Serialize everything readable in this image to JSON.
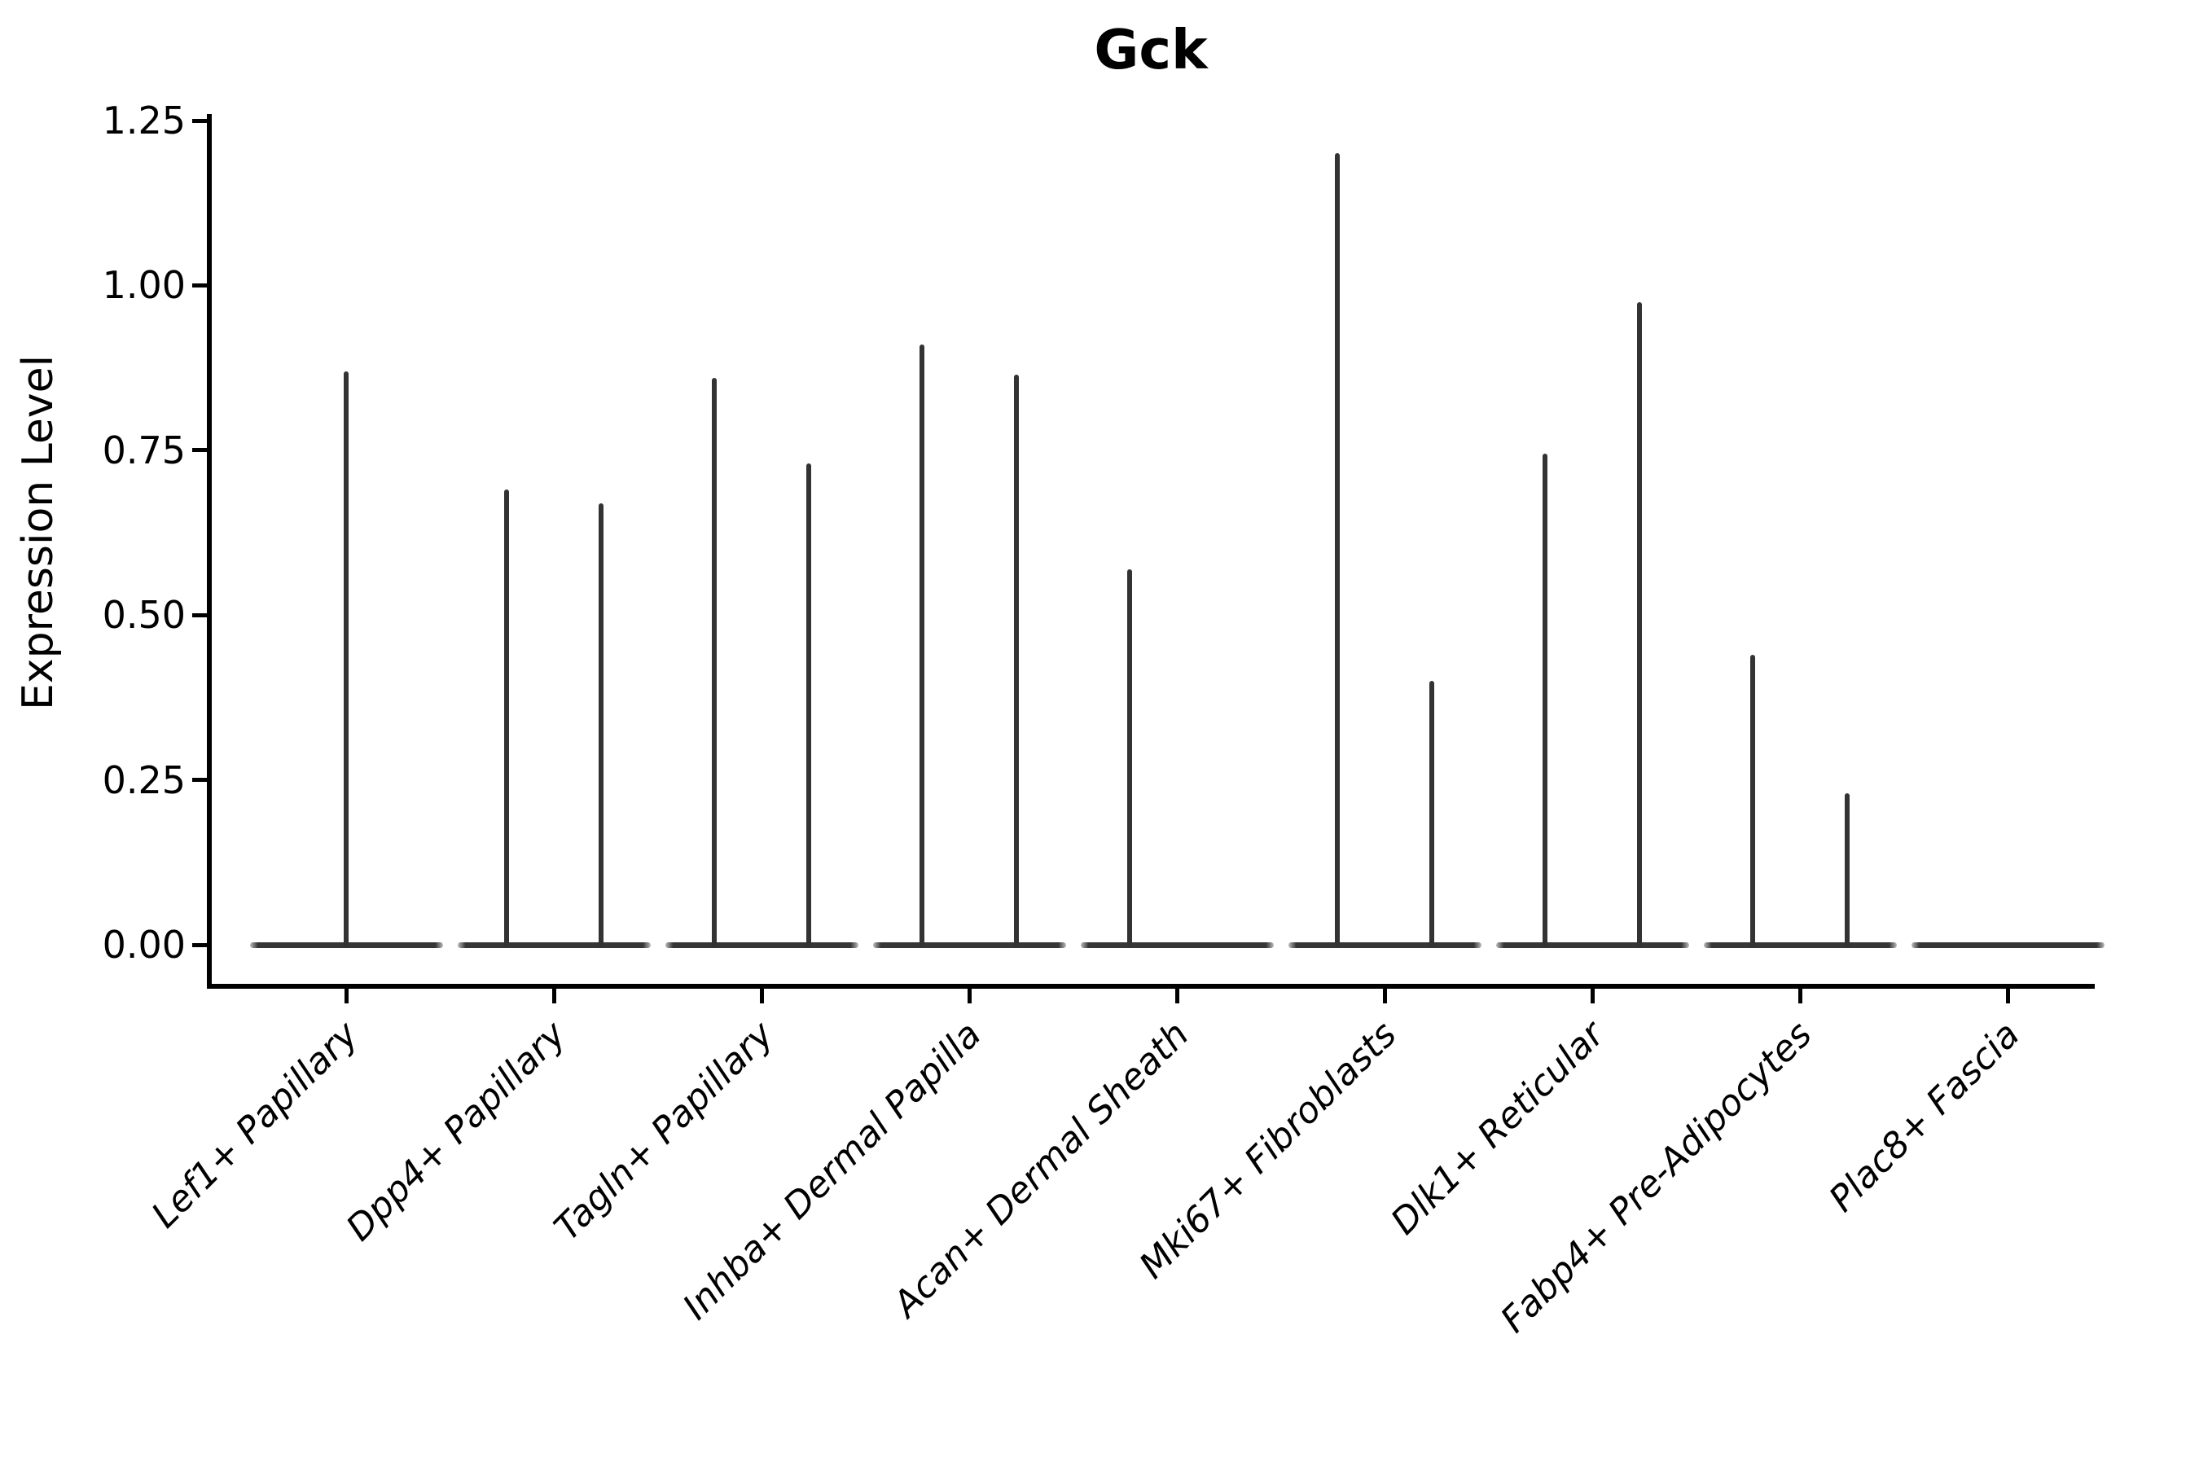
{
  "title": "Gck",
  "y_axis": {
    "label": "Expression Level",
    "tick_labels": [
      "0.00",
      "0.25",
      "0.50",
      "0.75",
      "1.00",
      "1.25"
    ],
    "tick_values": [
      0,
      0.25,
      0.5,
      0.75,
      1.0,
      1.25
    ]
  },
  "colors": {
    "violin": "#333333",
    "spine": "#000000",
    "text": "#000000",
    "background": "#ffffff"
  },
  "chart_data": {
    "type": "violin",
    "title": "Gck",
    "xlabel": "",
    "ylabel": "Expression Level",
    "ylim": [
      0,
      1.25
    ],
    "grid": false,
    "legend_position": "none",
    "description": "Stacked-violin style gene expression plot; each cell type shows a flat violin body at 0 with up to two thin density spikes whose tops mark the maximum expression value.",
    "categories": [
      "Lef1+ Papillary",
      "Dpp4+ Papillary",
      "Tagln+ Papillary",
      "Inhba+ Dermal Papilla",
      "Acan+ Dermal Sheath",
      "Mki67+ Fibroblasts",
      "Dlk1+ Reticular",
      "Fabp4+ Pre-Adipocytes",
      "Plac8+ Fascia"
    ],
    "series": [
      {
        "name": "Lef1+ Papillary",
        "baseline": 0,
        "spikes": [
          {
            "slot": "center",
            "max": 0.87
          }
        ]
      },
      {
        "name": "Dpp4+ Papillary",
        "baseline": 0,
        "spikes": [
          {
            "slot": "left",
            "max": 0.69
          },
          {
            "slot": "right",
            "max": 0.67
          }
        ]
      },
      {
        "name": "Tagln+ Papillary",
        "baseline": 0,
        "spikes": [
          {
            "slot": "left",
            "max": 0.86
          },
          {
            "slot": "right",
            "max": 0.73
          }
        ]
      },
      {
        "name": "Inhba+ Dermal Papilla",
        "baseline": 0,
        "spikes": [
          {
            "slot": "left",
            "max": 0.91
          },
          {
            "slot": "right",
            "max": 0.865
          }
        ]
      },
      {
        "name": "Acan+ Dermal Sheath",
        "baseline": 0,
        "spikes": [
          {
            "slot": "left",
            "max": 0.57
          }
        ]
      },
      {
        "name": "Mki67+ Fibroblasts",
        "baseline": 0,
        "spikes": [
          {
            "slot": "left",
            "max": 1.2
          },
          {
            "slot": "right",
            "max": 0.4
          }
        ]
      },
      {
        "name": "Dlk1+ Reticular",
        "baseline": 0,
        "spikes": [
          {
            "slot": "left",
            "max": 0.745
          },
          {
            "slot": "right",
            "max": 0.975
          }
        ]
      },
      {
        "name": "Fabp4+ Pre-Adipocytes",
        "baseline": 0,
        "spikes": [
          {
            "slot": "left",
            "max": 0.44
          },
          {
            "slot": "right",
            "max": 0.23
          }
        ]
      },
      {
        "name": "Plac8+ Fascia",
        "baseline": 0,
        "spikes": []
      }
    ]
  }
}
